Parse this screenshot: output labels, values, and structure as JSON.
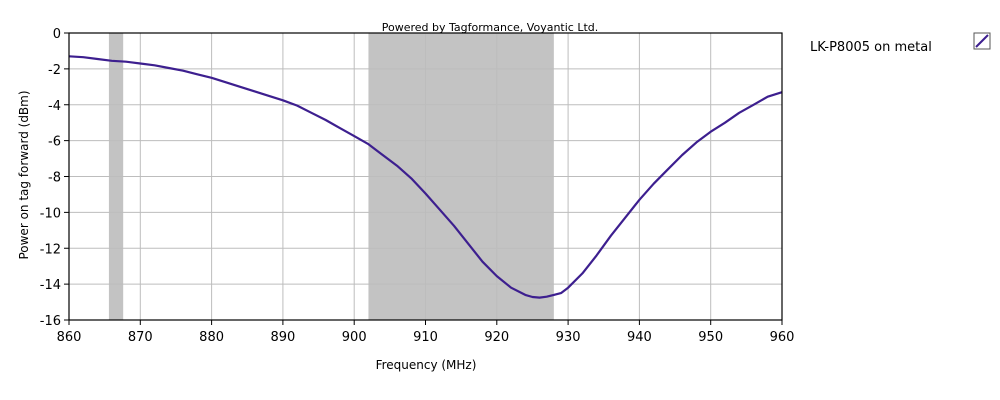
{
  "chart_data": {
    "type": "line",
    "subtitle": "Powered by Tagformance, Voyantic Ltd.",
    "xlabel": "Frequency (MHz)",
    "ylabel": "Power on tag forward (dBm)",
    "xlim": [
      860,
      960
    ],
    "ylim": [
      -16,
      0
    ],
    "x_ticks": [
      860,
      870,
      880,
      890,
      900,
      910,
      920,
      930,
      940,
      950,
      960
    ],
    "y_ticks": [
      0,
      -2,
      -4,
      -6,
      -8,
      -10,
      -12,
      -14,
      -16
    ],
    "grid": true,
    "legend_position": "right",
    "shaded_bands": [
      {
        "x_start": 865.6,
        "x_end": 867.6
      },
      {
        "x_start": 902,
        "x_end": 928
      }
    ],
    "series": [
      {
        "name": "LK-P8005 on metal",
        "color": "#3d1f8f",
        "x": [
          860,
          862,
          864,
          866,
          868,
          870,
          872,
          874,
          876,
          878,
          880,
          882,
          884,
          886,
          888,
          890,
          892,
          894,
          896,
          898,
          900,
          902,
          904,
          906,
          908,
          910,
          912,
          914,
          916,
          918,
          920,
          922,
          924,
          925,
          926,
          927,
          928,
          929,
          930,
          932,
          934,
          936,
          938,
          940,
          942,
          944,
          946,
          948,
          950,
          952,
          954,
          956,
          958,
          960
        ],
        "y": [
          -1.3,
          -1.35,
          -1.45,
          -1.55,
          -1.6,
          -1.7,
          -1.8,
          -1.95,
          -2.1,
          -2.3,
          -2.5,
          -2.75,
          -3.0,
          -3.25,
          -3.5,
          -3.75,
          -4.05,
          -4.45,
          -4.85,
          -5.3,
          -5.75,
          -6.2,
          -6.8,
          -7.4,
          -8.1,
          -8.95,
          -9.85,
          -10.75,
          -11.75,
          -12.75,
          -13.55,
          -14.2,
          -14.6,
          -14.72,
          -14.75,
          -14.7,
          -14.6,
          -14.5,
          -14.2,
          -13.4,
          -12.4,
          -11.3,
          -10.3,
          -9.3,
          -8.4,
          -7.6,
          -6.8,
          -6.1,
          -5.5,
          -5.0,
          -4.45,
          -4.0,
          -3.55,
          -3.3
        ]
      }
    ]
  }
}
